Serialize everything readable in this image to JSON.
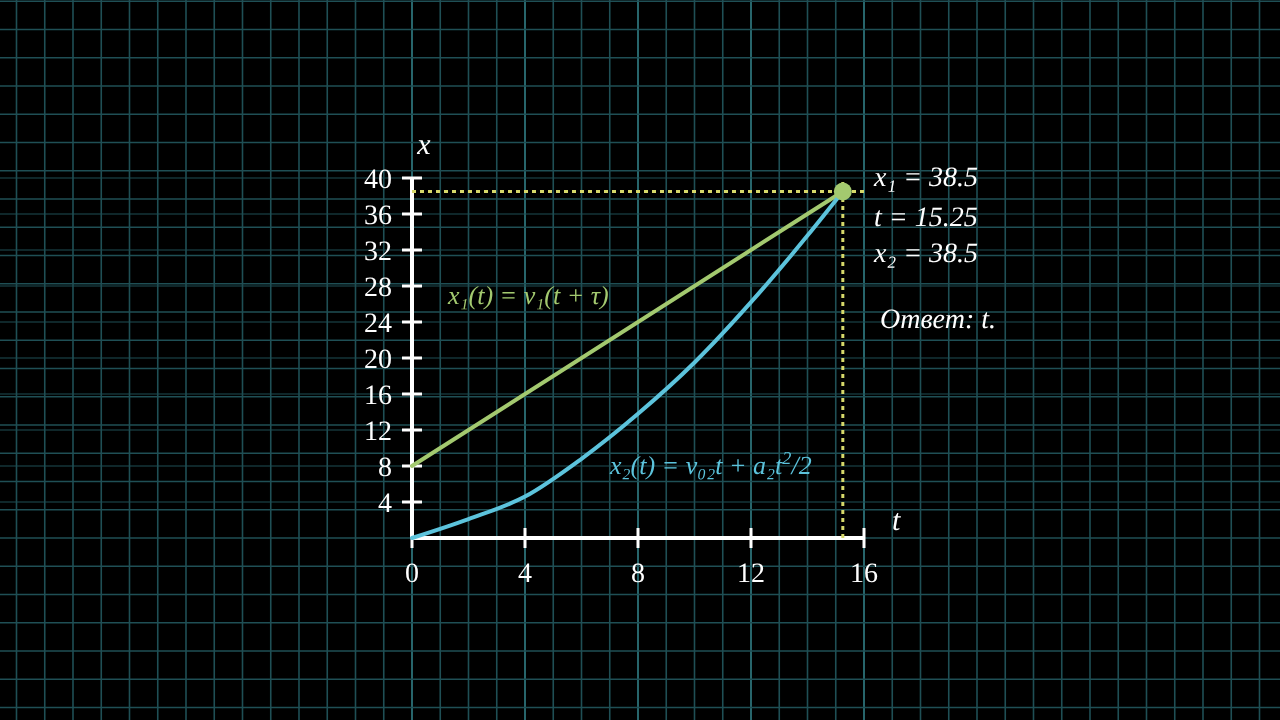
{
  "chart_data": {
    "type": "line",
    "xlabel": "t",
    "ylabel": "x",
    "xlim": [
      0,
      16
    ],
    "ylim": [
      0,
      40
    ],
    "xticks": [
      0,
      4,
      8,
      12,
      16
    ],
    "yticks": [
      4,
      8,
      12,
      16,
      20,
      24,
      28,
      32,
      36,
      40
    ],
    "grid": true,
    "marker": "none",
    "line_style": "solid",
    "series": [
      {
        "name": "x₁(t) = v₁(t + τ)",
        "color": "#a3c96f",
        "x": [
          0,
          15.25
        ],
        "values": [
          8,
          38.5
        ]
      },
      {
        "name": "x₂(t) = v₀₂t + a₂t$^{2}$/2",
        "color": "#5cc3dc",
        "x": [
          0,
          2,
          4,
          6,
          8,
          10,
          12,
          14,
          15.25
        ],
        "values": [
          0,
          2.1,
          4.6,
          8.8,
          13.8,
          19.5,
          26.2,
          33.6,
          38.5
        ]
      },
      {
        "type": "scatter",
        "marker": "circle",
        "color": "#a3c96f",
        "x": [
          15.25
        ],
        "values": [
          38.5
        ]
      }
    ],
    "ref_lines": [
      {
        "axis": "y",
        "value": 38.5,
        "color": "#d6d86a",
        "line_style": "dotted"
      },
      {
        "axis": "x",
        "value": 15.25,
        "color": "#d6d86a",
        "line_style": "dotted"
      }
    ],
    "annotations": [
      "x₁ = 38.5",
      "t = 15.25",
      "x₂ = 38.5",
      "Ответ: t."
    ]
  }
}
